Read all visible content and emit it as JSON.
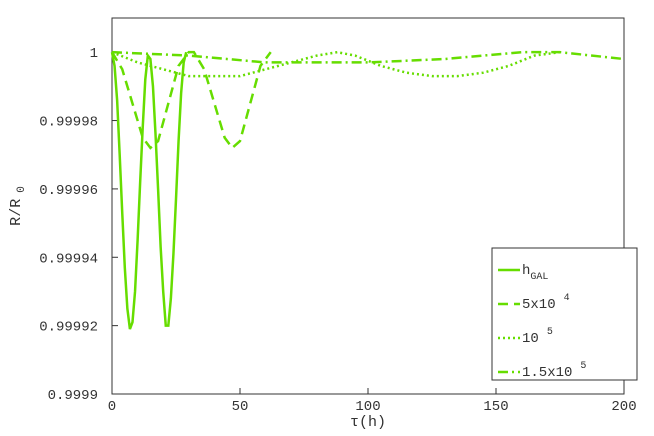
{
  "chart_data": {
    "type": "line",
    "xlabel": "τ(h)",
    "ylabel": "R/R",
    "ylabel_sub": "0",
    "xlim": [
      0,
      200
    ],
    "xticks": [
      0,
      50,
      100,
      150,
      200
    ],
    "ylim": [
      0.9999,
      1.00001
    ],
    "yticks": [
      0.9999,
      0.99992,
      0.99994,
      0.99996,
      0.99998,
      1
    ],
    "legend": "lower right",
    "series": [
      {
        "name": "h",
        "name_sub": "GAL",
        "color": "#66dd00",
        "dash": "solid",
        "x": [
          0,
          1,
          2,
          3,
          4,
          5,
          6,
          7,
          8,
          9,
          10,
          11,
          12,
          13,
          14,
          15,
          16,
          17,
          18,
          19,
          20,
          21,
          22,
          23,
          24,
          25,
          26,
          27,
          28,
          29
        ],
        "values": [
          1,
          0.999996,
          0.999986,
          0.99997,
          0.999953,
          0.999937,
          0.999925,
          0.999919,
          0.999921,
          0.99993,
          0.999945,
          0.999962,
          0.999978,
          0.999992,
          0.999999,
          0.999998,
          0.99999,
          0.999976,
          0.99996,
          0.999943,
          0.99993,
          0.99992,
          0.99992,
          0.999928,
          0.999941,
          0.999957,
          0.999974,
          0.999988,
          0.999997,
          1
        ]
      },
      {
        "name": "5x10",
        "name_sup": "4",
        "color": "#66dd00",
        "dash": "dashed",
        "x": [
          0,
          4,
          8,
          12,
          15,
          18,
          22,
          26,
          30,
          32,
          36,
          40,
          44,
          47,
          50,
          54,
          58,
          62
        ],
        "values": [
          1,
          0.999995,
          0.999985,
          0.999975,
          0.999972,
          0.999974,
          0.999985,
          0.999996,
          1,
          1,
          0.999995,
          0.999985,
          0.999975,
          0.999972,
          0.999974,
          0.999985,
          0.999996,
          1
        ]
      },
      {
        "name": "10",
        "name_sup": "5",
        "color": "#66dd00",
        "dash": "dotted",
        "x": [
          0,
          10,
          20,
          30,
          40,
          50,
          60,
          70,
          80,
          88,
          95,
          105,
          115,
          125,
          135,
          145,
          155,
          165,
          175
        ],
        "values": [
          1,
          0.999997,
          0.999995,
          0.999993,
          0.999993,
          0.999993,
          0.999995,
          0.999997,
          0.999999,
          1,
          0.999999,
          0.999996,
          0.999994,
          0.999993,
          0.999993,
          0.999994,
          0.999996,
          0.999999,
          1
        ]
      },
      {
        "name": "1.5x10",
        "name_sup": "5",
        "color": "#66dd00",
        "dash": "dashdot",
        "x": [
          0,
          30,
          60,
          100,
          130,
          160,
          175,
          200
        ],
        "values": [
          1,
          0.999999,
          0.999997,
          0.999997,
          0.999998,
          1,
          1,
          0.999998
        ]
      }
    ]
  }
}
